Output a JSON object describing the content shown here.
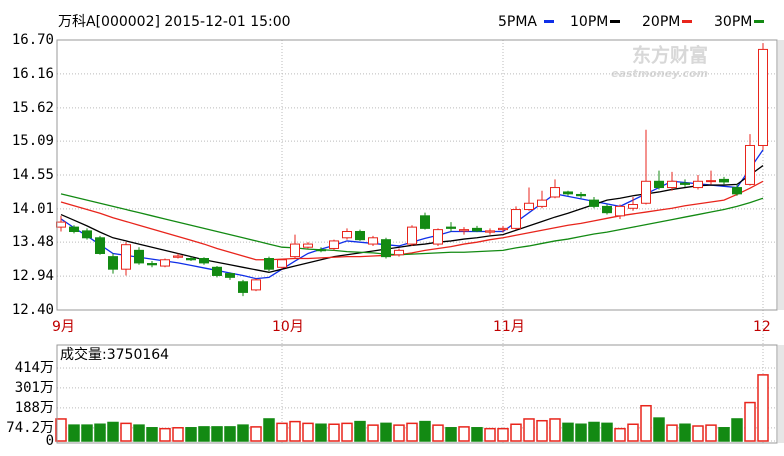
{
  "chart_data": [
    {
      "type": "candlestick",
      "title": "万科A[000002] 2015-12-01 15:00",
      "watermark": {
        "name": "东方财富",
        "url": "eastmoney.com"
      },
      "categories": [
        "9月",
        null,
        null,
        null,
        null,
        null,
        null,
        null,
        null,
        null,
        null,
        null,
        null,
        null,
        null,
        null,
        null,
        "10月",
        null,
        null,
        null,
        null,
        null,
        null,
        null,
        null,
        null,
        null,
        null,
        null,
        null,
        null,
        null,
        null,
        "11月",
        null,
        null,
        null,
        null,
        null,
        null,
        null,
        null,
        null,
        null,
        null,
        null,
        null,
        null,
        null,
        null,
        null,
        null,
        null,
        "12"
      ],
      "open": [
        13.72,
        13.72,
        13.66,
        13.55,
        13.25,
        13.05,
        13.35,
        13.14,
        13.1,
        13.24,
        13.22,
        13.22,
        13.08,
        12.98,
        12.85,
        12.72,
        13.22,
        13.08,
        13.25,
        13.4,
        13.36,
        13.38,
        13.55,
        13.65,
        13.45,
        13.52,
        13.28,
        13.45,
        13.9,
        13.45,
        13.72,
        13.66,
        13.7,
        13.64,
        13.68,
        13.7,
        14.0,
        14.05,
        14.2,
        14.28,
        14.24,
        14.15,
        14.05,
        13.9,
        14.02,
        14.1,
        14.45,
        14.35,
        14.42,
        14.35,
        14.45,
        14.48,
        14.35,
        14.4,
        15.02
      ],
      "high": [
        13.9,
        13.75,
        13.7,
        13.58,
        13.3,
        13.48,
        13.4,
        13.18,
        13.22,
        13.3,
        13.25,
        13.24,
        13.1,
        13.0,
        12.88,
        12.9,
        13.25,
        13.22,
        13.6,
        13.48,
        13.4,
        13.52,
        13.7,
        13.68,
        13.58,
        13.55,
        13.38,
        13.75,
        13.95,
        13.7,
        13.8,
        13.72,
        13.74,
        13.7,
        13.74,
        14.05,
        14.35,
        14.3,
        14.48,
        14.3,
        14.28,
        14.2,
        14.08,
        14.08,
        14.2,
        15.27,
        14.62,
        14.6,
        14.48,
        14.55,
        14.62,
        14.52,
        14.4,
        15.2,
        16.65
      ],
      "low": [
        13.65,
        13.62,
        13.52,
        13.28,
        12.98,
        12.95,
        13.12,
        13.08,
        13.08,
        13.22,
        13.18,
        13.12,
        12.92,
        12.88,
        12.62,
        12.7,
        13.02,
        13.05,
        13.22,
        13.38,
        13.32,
        13.35,
        13.52,
        13.5,
        13.42,
        13.22,
        13.25,
        13.42,
        13.68,
        13.42,
        13.65,
        13.6,
        13.64,
        13.6,
        13.64,
        13.68,
        13.98,
        14.02,
        14.18,
        14.22,
        14.18,
        14.02,
        13.92,
        13.85,
        13.98,
        14.08,
        14.32,
        14.3,
        14.36,
        14.32,
        14.4,
        14.4,
        14.22,
        14.38,
        14.95
      ],
      "close": [
        13.8,
        13.65,
        13.55,
        13.3,
        13.05,
        13.44,
        13.15,
        13.12,
        13.2,
        13.26,
        13.2,
        13.15,
        12.95,
        12.92,
        12.68,
        12.88,
        13.05,
        13.2,
        13.45,
        13.45,
        13.35,
        13.5,
        13.65,
        13.52,
        13.55,
        13.25,
        13.35,
        13.72,
        13.7,
        13.68,
        13.7,
        13.68,
        13.66,
        13.66,
        13.7,
        14.0,
        14.1,
        14.15,
        14.35,
        14.25,
        14.22,
        14.05,
        13.95,
        14.05,
        14.08,
        14.45,
        14.35,
        14.45,
        14.4,
        14.45,
        14.46,
        14.44,
        14.25,
        15.02,
        16.55
      ],
      "up_color": "#e8251c",
      "down_color": "#138a13",
      "series": [
        {
          "name": "5PMA",
          "color": "#0f2fe8",
          "values": [
            13.85,
            13.71,
            13.58,
            13.44,
            13.3,
            13.27,
            13.24,
            13.21,
            13.18,
            13.15,
            13.11,
            13.07,
            13.03,
            12.99,
            12.95,
            12.9,
            12.92,
            13.05,
            13.18,
            13.3,
            13.37,
            13.43,
            13.5,
            13.48,
            13.46,
            13.44,
            13.42,
            13.48,
            13.54,
            13.59,
            13.65,
            13.65,
            13.65,
            13.65,
            13.65,
            13.8,
            13.95,
            14.1,
            14.25,
            14.21,
            14.17,
            14.13,
            14.09,
            14.05,
            14.15,
            14.25,
            14.35,
            14.45,
            14.43,
            14.41,
            14.39,
            14.37,
            14.35,
            14.65,
            14.95
          ]
        },
        {
          "name": "10PM",
          "color": "#000000",
          "values": [
            13.92,
            13.83,
            13.74,
            13.64,
            13.55,
            13.5,
            13.45,
            13.4,
            13.35,
            13.3,
            13.25,
            13.2,
            13.16,
            13.12,
            13.08,
            13.04,
            13.0,
            13.05,
            13.1,
            13.15,
            13.2,
            13.25,
            13.28,
            13.31,
            13.34,
            13.37,
            13.4,
            13.43,
            13.45,
            13.48,
            13.5,
            13.53,
            13.55,
            13.58,
            13.6,
            13.67,
            13.74,
            13.81,
            13.88,
            13.94,
            14.01,
            14.08,
            14.15,
            14.18,
            14.22,
            14.25,
            14.28,
            14.32,
            14.35,
            14.38,
            14.39,
            14.39,
            14.4,
            14.55,
            14.7
          ]
        },
        {
          "name": "20PM",
          "color": "#e8251c",
          "values": [
            14.12,
            14.06,
            14.0,
            13.94,
            13.87,
            13.81,
            13.75,
            13.69,
            13.63,
            13.57,
            13.51,
            13.45,
            13.38,
            13.32,
            13.26,
            13.2,
            13.2,
            13.21,
            13.22,
            13.22,
            13.23,
            13.24,
            13.25,
            13.25,
            13.26,
            13.27,
            13.28,
            13.31,
            13.35,
            13.38,
            13.41,
            13.45,
            13.48,
            13.52,
            13.55,
            13.59,
            13.63,
            13.67,
            13.71,
            13.75,
            13.78,
            13.82,
            13.86,
            13.9,
            13.93,
            13.96,
            13.99,
            14.02,
            14.06,
            14.09,
            14.12,
            14.15,
            14.24,
            14.34,
            14.45
          ]
        },
        {
          "name": "30PM",
          "color": "#138a13",
          "values": [
            14.25,
            14.2,
            14.15,
            14.1,
            14.05,
            14.0,
            13.95,
            13.9,
            13.85,
            13.8,
            13.75,
            13.7,
            13.65,
            13.6,
            13.55,
            13.5,
            13.45,
            13.4,
            13.39,
            13.37,
            13.36,
            13.35,
            13.33,
            13.32,
            13.31,
            13.29,
            13.28,
            13.29,
            13.3,
            13.31,
            13.32,
            13.32,
            13.33,
            13.34,
            13.35,
            13.39,
            13.42,
            13.46,
            13.5,
            13.53,
            13.57,
            13.61,
            13.64,
            13.68,
            13.72,
            13.76,
            13.8,
            13.84,
            13.88,
            13.92,
            13.96,
            14.0,
            14.05,
            14.11,
            14.18
          ]
        }
      ],
      "ylim": [
        12.4,
        16.7
      ],
      "yticks": [
        {
          "value": 16.7,
          "label": "16.70"
        },
        16.16,
        15.62,
        15.09,
        14.55,
        14.01,
        13.48,
        12.94,
        {
          "value": 12.4,
          "label": "12.40"
        }
      ],
      "grid": true
    },
    {
      "type": "bar",
      "title": "成交量:3750164",
      "values": [
        125,
        90,
        90,
        95,
        105,
        100,
        90,
        75,
        70,
        75,
        75,
        80,
        80,
        80,
        90,
        80,
        125,
        100,
        110,
        100,
        95,
        95,
        100,
        110,
        90,
        100,
        90,
        100,
        110,
        90,
        75,
        80,
        75,
        70,
        70,
        95,
        125,
        115,
        125,
        100,
        95,
        105,
        100,
        70,
        95,
        200,
        130,
        90,
        95,
        85,
        90,
        75,
        125,
        218,
        375
      ],
      "up_color": "#e8251c",
      "down_color": "#138a13",
      "ylim": [
        0,
        414
      ],
      "yticks": [
        {
          "value": 414,
          "label": "414万"
        },
        {
          "value": 301,
          "label": "301万"
        },
        {
          "value": 188,
          "label": "188万"
        },
        {
          "value": 74.2,
          "label": "74.2万"
        },
        0
      ],
      "grid": true
    }
  ]
}
